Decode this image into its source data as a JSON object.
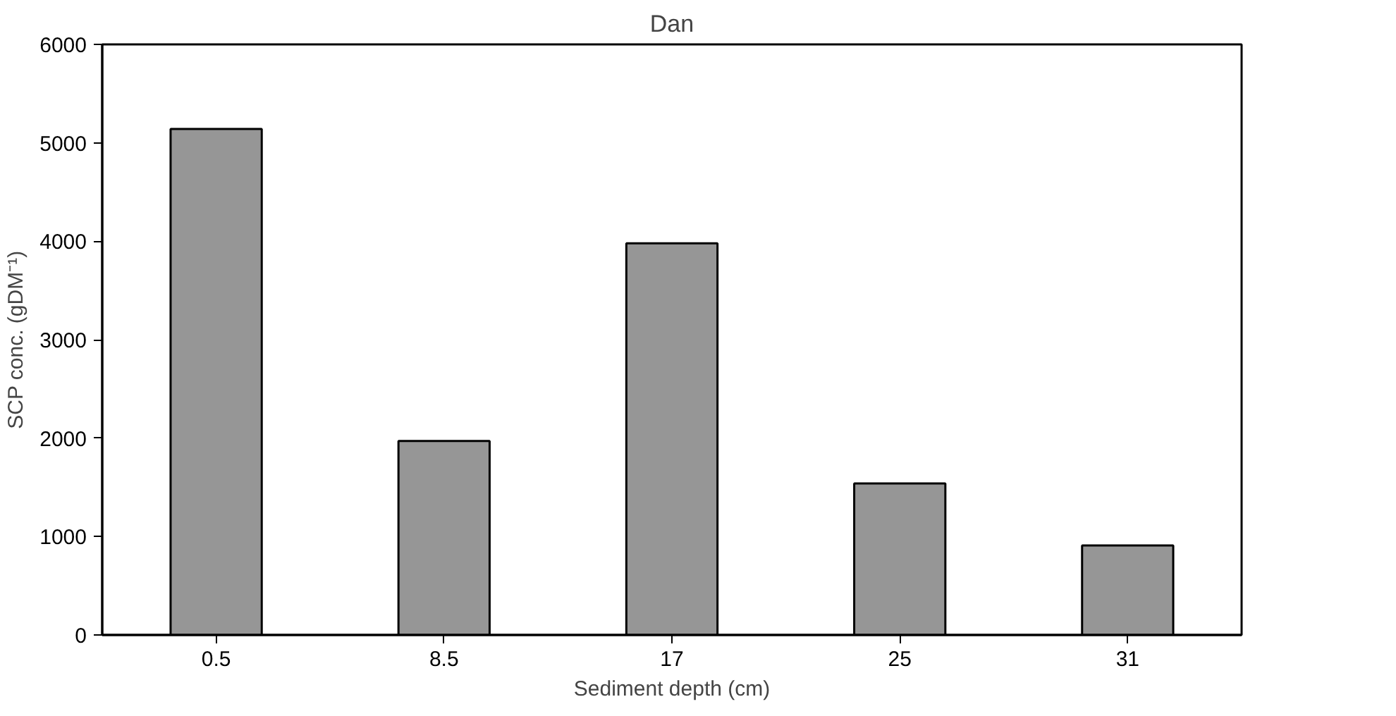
{
  "chart_data": {
    "type": "bar",
    "title": "Dan",
    "xlabel": "Sediment depth (cm)",
    "ylabel": "SCP conc. (gDM⁻¹)",
    "categories": [
      "0.5",
      "8.5",
      "17",
      "25",
      "31"
    ],
    "values": [
      5140,
      1970,
      3980,
      1540,
      910
    ],
    "color": "#969696",
    "ylim": [
      0,
      6000
    ],
    "yticks": [
      0,
      1000,
      2000,
      3000,
      4000,
      5000,
      6000
    ],
    "grid": false
  }
}
